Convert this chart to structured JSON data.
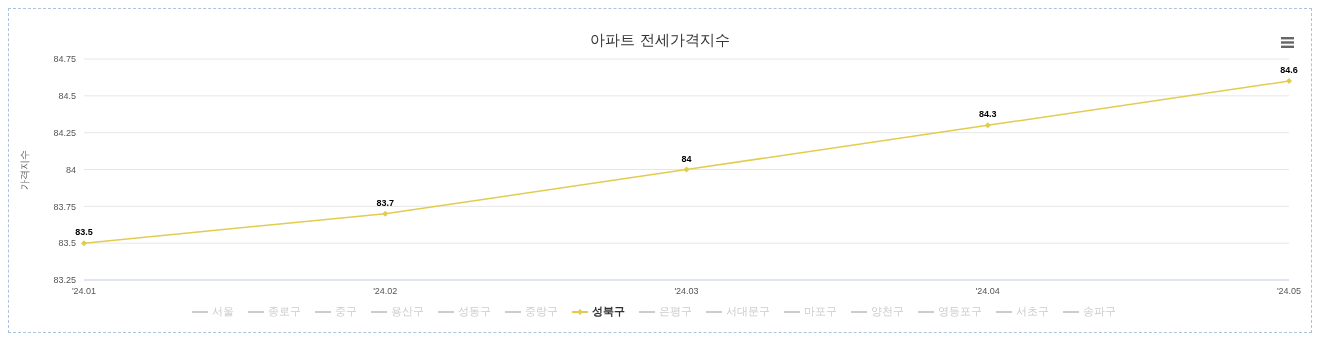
{
  "chart_data": {
    "type": "line",
    "title": "아파트 전세가격지수",
    "ylabel": "가격지수",
    "categories": [
      "'24.01",
      "'24.02",
      "'24.03",
      "'24.04",
      "'24.05"
    ],
    "series": [
      {
        "name": "서울",
        "color": "#cccccc",
        "values": [
          null,
          null,
          null,
          null,
          null
        ]
      },
      {
        "name": "종로구",
        "color": "#cccccc",
        "values": [
          null,
          null,
          null,
          null,
          null
        ]
      },
      {
        "name": "중구",
        "color": "#cccccc",
        "values": [
          null,
          null,
          null,
          null,
          null
        ]
      },
      {
        "name": "용산구",
        "color": "#cccccc",
        "values": [
          null,
          null,
          null,
          null,
          null
        ]
      },
      {
        "name": "성동구",
        "color": "#cccccc",
        "values": [
          null,
          null,
          null,
          null,
          null
        ]
      },
      {
        "name": "중랑구",
        "color": "#cccccc",
        "values": [
          null,
          null,
          null,
          null,
          null
        ]
      },
      {
        "name": "성북구",
        "color": "#e2cc4e",
        "marker": "diamond",
        "values": [
          83.5,
          83.7,
          84,
          84.3,
          84.6
        ]
      },
      {
        "name": "은평구",
        "color": "#cccccc",
        "values": [
          null,
          null,
          null,
          null,
          null
        ]
      },
      {
        "name": "서대문구",
        "color": "#cccccc",
        "values": [
          null,
          null,
          null,
          null,
          null
        ]
      },
      {
        "name": "마포구",
        "color": "#cccccc",
        "values": [
          null,
          null,
          null,
          null,
          null
        ]
      },
      {
        "name": "양천구",
        "color": "#cccccc",
        "values": [
          null,
          null,
          null,
          null,
          null
        ]
      },
      {
        "name": "영등포구",
        "color": "#cccccc",
        "values": [
          null,
          null,
          null,
          null,
          null
        ]
      },
      {
        "name": "서초구",
        "color": "#cccccc",
        "values": [
          null,
          null,
          null,
          null,
          null
        ]
      },
      {
        "name": "송파구",
        "color": "#cccccc",
        "values": [
          null,
          null,
          null,
          null,
          null
        ]
      }
    ],
    "ylim": [
      83.25,
      84.75
    ],
    "yticks": [
      83.25,
      83.5,
      83.75,
      84,
      84.25,
      84.5,
      84.75
    ],
    "grid": "y",
    "legend": "bottom",
    "data_labels": true
  }
}
